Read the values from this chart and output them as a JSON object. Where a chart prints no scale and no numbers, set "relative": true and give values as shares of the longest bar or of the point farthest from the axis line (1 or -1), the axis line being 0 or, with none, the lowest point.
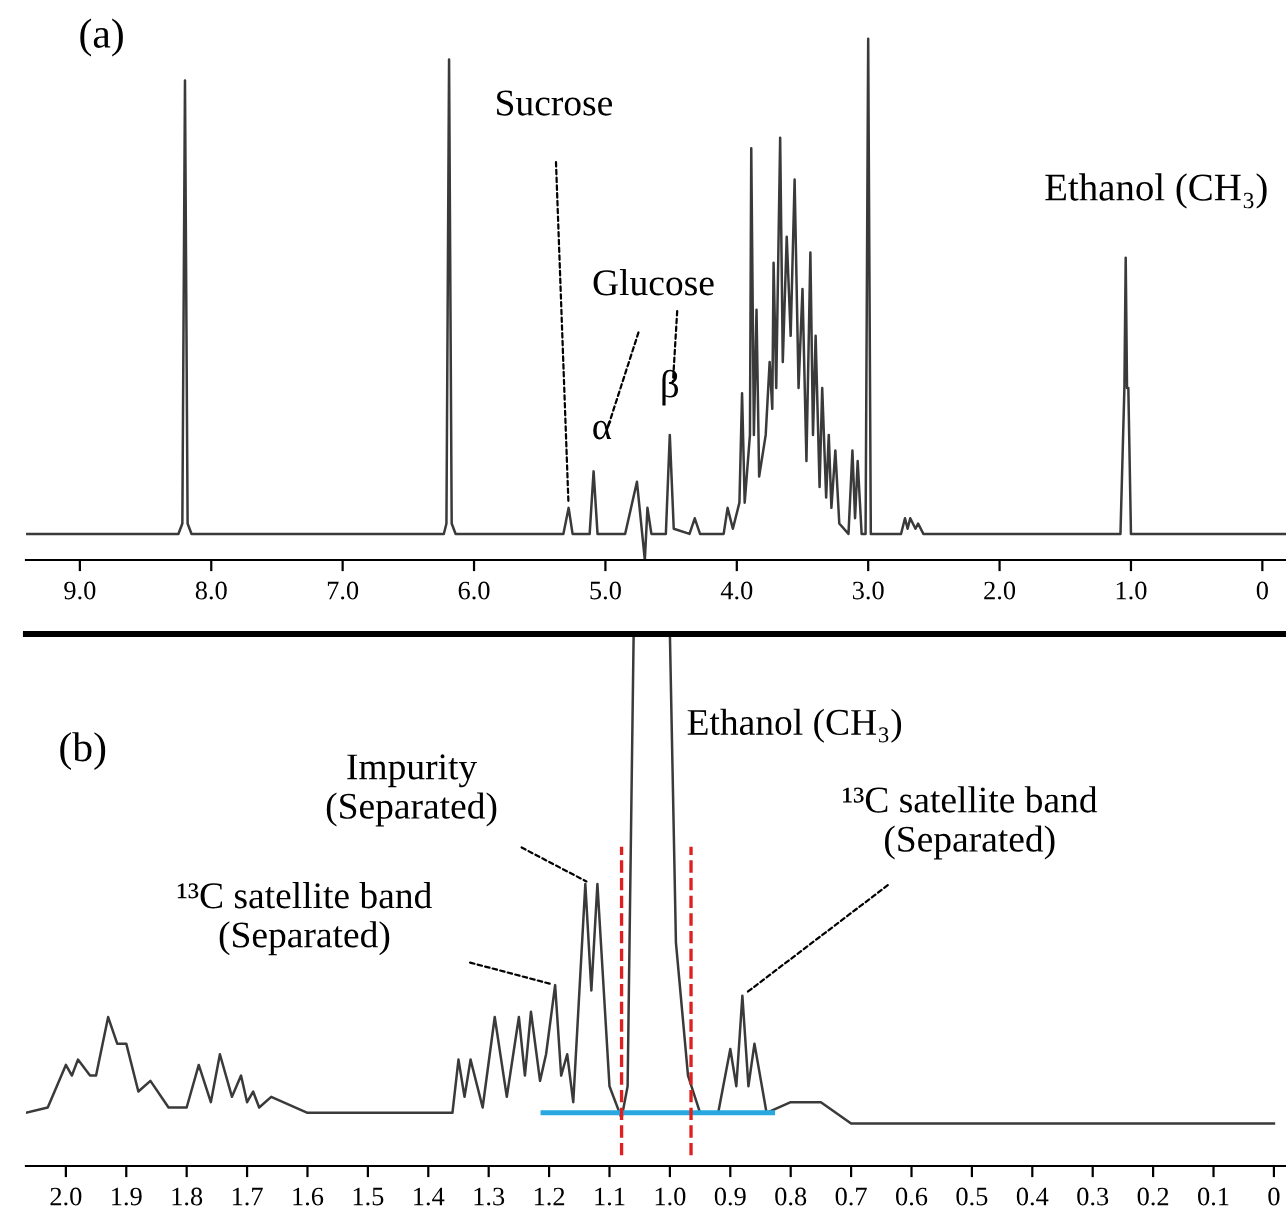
{
  "chart_data": [
    {
      "type": "line",
      "relative": true,
      "title": "(a)",
      "xlim": [
        9.41,
        -0.18
      ],
      "xticks": [
        {
          "value": 9,
          "label": "9.0"
        },
        {
          "value": 8,
          "label": "8.0"
        },
        {
          "value": 7,
          "label": "7.0"
        },
        {
          "value": 6,
          "label": "6.0"
        },
        {
          "value": 5,
          "label": "5.0"
        },
        {
          "value": 4,
          "label": "4.0"
        },
        {
          "value": 3,
          "label": "3.0"
        },
        {
          "value": 2,
          "label": "2.0"
        },
        {
          "value": 1,
          "label": "1.0"
        },
        0
      ],
      "series": [
        {
          "color": "#3a3a3a",
          "x": [
            9.4,
            8.25,
            8.22,
            8.2,
            8.18,
            8.15,
            7.0,
            6.23,
            6.21,
            6.19,
            6.17,
            6.14,
            5.32,
            5.28,
            5.25,
            5.12,
            5.09,
            5.06,
            4.85,
            4.76,
            4.72,
            4.7,
            4.68,
            4.65,
            4.54,
            4.51,
            4.48,
            4.36,
            4.32,
            4.28,
            4.1,
            4.07,
            4.03,
            3.98,
            3.96,
            3.94,
            3.9,
            3.89,
            3.87,
            3.85,
            3.83,
            3.78,
            3.75,
            3.73,
            3.72,
            3.7,
            3.67,
            3.65,
            3.62,
            3.59,
            3.56,
            3.53,
            3.5,
            3.47,
            3.44,
            3.42,
            3.4,
            3.37,
            3.35,
            3.32,
            3.3,
            3.28,
            3.25,
            3.22,
            3.15,
            3.12,
            3.1,
            3.08,
            3.05,
            3.02,
            3.0,
            2.98,
            2.75,
            2.72,
            2.7,
            2.68,
            2.64,
            2.62,
            2.58,
            1.08,
            1.05,
            1.04,
            1.03,
            1.02,
            1.0,
            -0.18
          ],
          "values": [
            0.05,
            0.05,
            0.07,
            0.92,
            0.07,
            0.05,
            0.05,
            0.05,
            0.07,
            0.96,
            0.07,
            0.05,
            0.05,
            0.1,
            0.05,
            0.05,
            0.17,
            0.05,
            0.05,
            0.15,
            0.05,
            0,
            0.1,
            0.05,
            0.05,
            0.24,
            0.06,
            0.05,
            0.08,
            0.05,
            0.05,
            0.1,
            0.06,
            0.11,
            0.32,
            0.11,
            0.24,
            0.79,
            0.24,
            0.48,
            0.16,
            0.24,
            0.38,
            0.29,
            0.57,
            0.33,
            0.81,
            0.38,
            0.62,
            0.43,
            0.73,
            0.33,
            0.52,
            0.19,
            0.59,
            0.24,
            0.43,
            0.14,
            0.33,
            0.12,
            0.24,
            0.1,
            0.21,
            0.07,
            0.05,
            0.21,
            0.08,
            0.19,
            0.05,
            0.05,
            1,
            0.05,
            0.05,
            0.08,
            0.06,
            0.08,
            0.06,
            0.07,
            0.05,
            0.05,
            0.33,
            0.58,
            0.33,
            0.33,
            0.05,
            0.05
          ]
        }
      ],
      "annotations": [
        {
          "text": "Sucrose",
          "x": 5.28,
          "y": 0.1
        },
        {
          "text": "α",
          "x": 5.09,
          "y": 0.17
        },
        {
          "text": "β",
          "x": 4.51,
          "y": 0.24
        },
        "Glucose",
        {
          "text": "Ethanol (CH₃)",
          "x": 1.04,
          "y": 0.58
        }
      ]
    },
    {
      "type": "line",
      "relative": true,
      "title": "(b)",
      "xlim": [
        2.066,
        -0.02
      ],
      "xticks": [
        {
          "value": 2,
          "label": "2.0"
        },
        1.9,
        1.8,
        1.7,
        1.6,
        1.5,
        1.4,
        1.3,
        1.2,
        1.1,
        {
          "value": 1,
          "label": "1.0"
        },
        0.9,
        0.8,
        0.7,
        0.6,
        0.5,
        0.4,
        0.3,
        0.2,
        0.1,
        0
      ],
      "series": [
        {
          "color": "#3a3a3a",
          "x": [
            2.066,
            2.03,
            2.0,
            1.99,
            1.98,
            1.96,
            1.95,
            1.93,
            1.915,
            1.9,
            1.88,
            1.86,
            1.83,
            1.8,
            1.78,
            1.76,
            1.745,
            1.725,
            1.71,
            1.7,
            1.69,
            1.68,
            1.66,
            1.6,
            1.5,
            1.4,
            1.36,
            1.35,
            1.34,
            1.33,
            1.31,
            1.29,
            1.27,
            1.25,
            1.24,
            1.23,
            1.215,
            1.205,
            1.19,
            1.18,
            1.17,
            1.16,
            1.14,
            1.13,
            1.12,
            1.1,
            1.08,
            1.07,
            1.06,
            1.0,
            0.99,
            0.97,
            0.95,
            0.92,
            0.9,
            0.89,
            0.88,
            0.87,
            0.86,
            0.84,
            0.8,
            0.75,
            0.7,
            0.5,
            0.3,
            0.0
          ],
          "values": [
            0.1,
            0.11,
            0.19,
            0.17,
            0.2,
            0.17,
            0.17,
            0.28,
            0.23,
            0.23,
            0.14,
            0.16,
            0.11,
            0.11,
            0.19,
            0.12,
            0.21,
            0.13,
            0.17,
            0.12,
            0.14,
            0.11,
            0.13,
            0.1,
            0.1,
            0.1,
            0.1,
            0.2,
            0.13,
            0.2,
            0.11,
            0.28,
            0.13,
            0.28,
            0.17,
            0.29,
            0.16,
            0.21,
            0.34,
            0.17,
            0.21,
            0.12,
            0.53,
            0.33,
            0.53,
            0.15,
            0.09,
            0.15,
            1,
            1,
            0.42,
            0.17,
            0.1,
            0.1,
            0.22,
            0.15,
            0.32,
            0.15,
            0.23,
            0.1,
            0.12,
            0.12,
            0.08,
            0.08,
            0.08,
            0.08
          ]
        },
        {
          "color": "#29a8e0",
          "x": [
            1.21,
            0.83
          ],
          "values": [
            0.1,
            0.1
          ]
        }
      ],
      "ref_lines": [
        {
          "axis": "x",
          "value": 1.08,
          "color": "#e02020",
          "line_style": "dashed"
        },
        {
          "axis": "x",
          "value": 0.965,
          "color": "#e02020",
          "line_style": "dashed"
        }
      ],
      "annotations": [
        {
          "text": "Ethanol (CH₃)",
          "x": 1.0,
          "y": 1
        },
        {
          "text": "Impurity\n(Separated)",
          "x": 1.13,
          "y": 0.53
        },
        {
          "text": "¹³C satellite band\n(Separated)",
          "x": 1.19,
          "y": 0.34
        },
        {
          "text": "¹³C satellite band\n(Separated)",
          "x": 0.88,
          "y": 0.32
        }
      ]
    }
  ]
}
